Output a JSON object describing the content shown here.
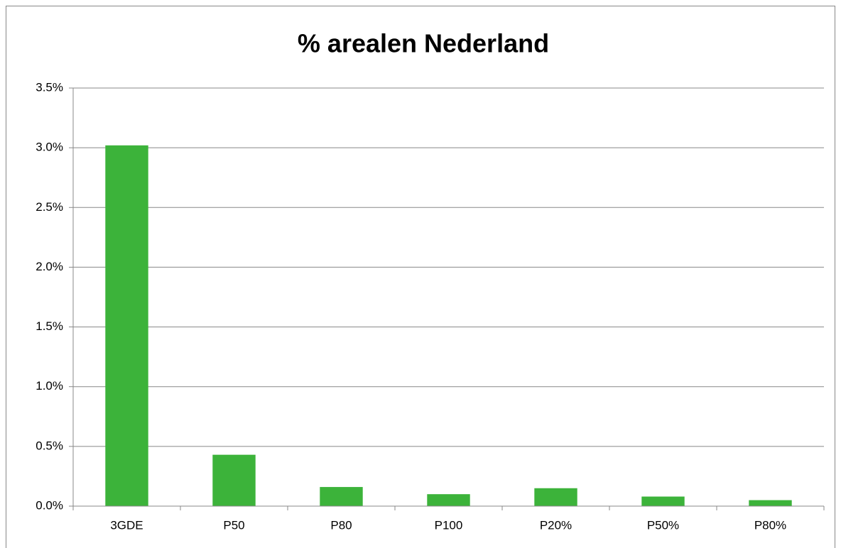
{
  "chart_data": {
    "type": "bar",
    "title": "% arealen Nederland",
    "categories": [
      "3GDE",
      "P50",
      "P80",
      "P100",
      "P20%",
      "P50%",
      "P80%"
    ],
    "values": [
      3.02,
      0.43,
      0.16,
      0.1,
      0.15,
      0.08,
      0.05
    ],
    "color": "#3cb33a",
    "ylim": [
      0,
      3.5
    ],
    "yticks": [
      {
        "value": 0,
        "label": "0.0%"
      },
      {
        "value": 0.5,
        "label": "0.5%"
      },
      {
        "value": 1,
        "label": "1.0%"
      },
      {
        "value": 1.5,
        "label": "1.5%"
      },
      {
        "value": 2,
        "label": "2.0%"
      },
      {
        "value": 2.5,
        "label": "2.5%"
      },
      {
        "value": 3,
        "label": "3.0%"
      },
      {
        "value": 3.5,
        "label": "3.5%"
      }
    ],
    "grid": true
  }
}
